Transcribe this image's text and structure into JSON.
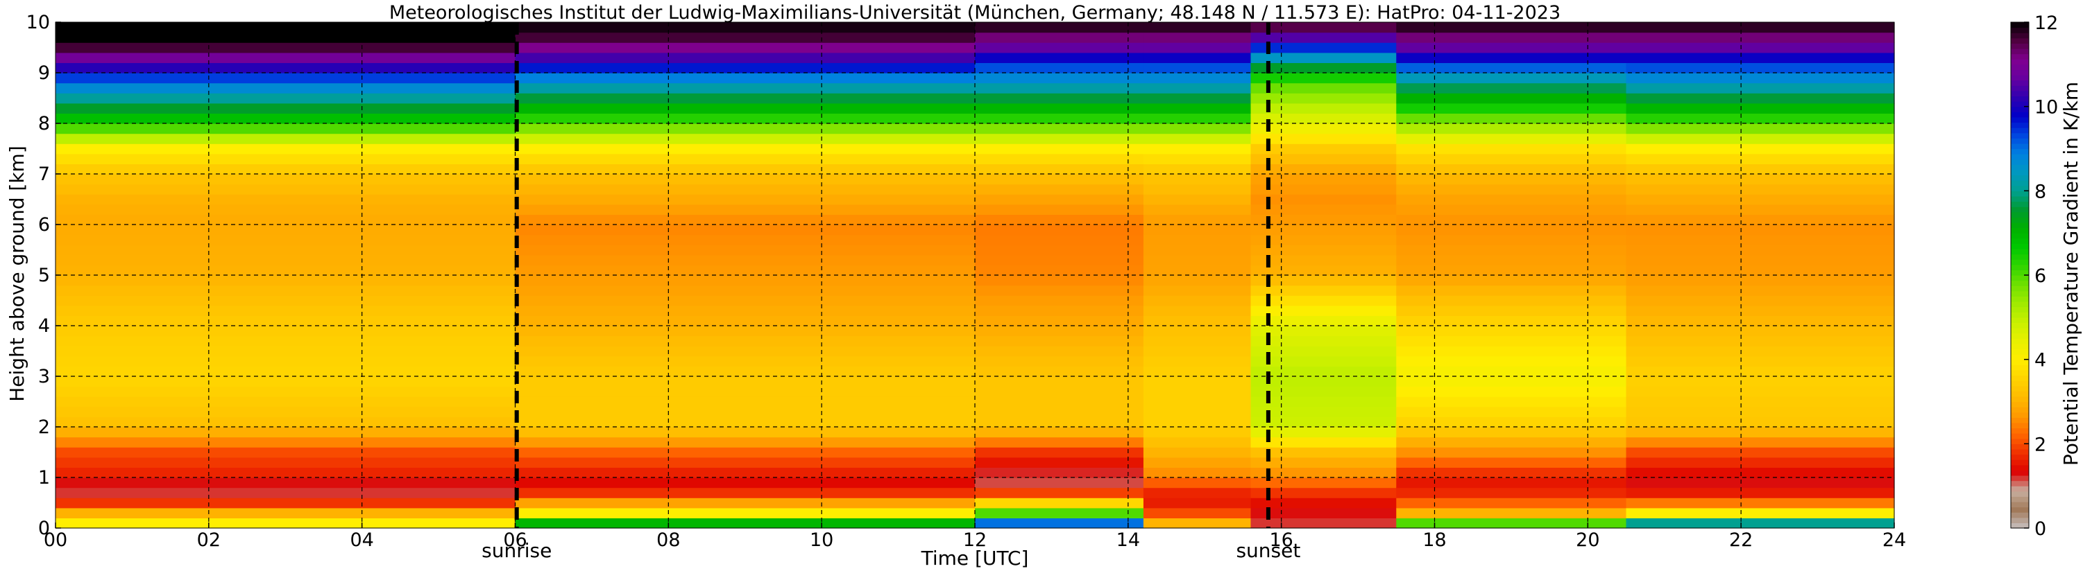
{
  "chart_data": {
    "type": "heatmap",
    "title": "Meteorologisches Institut der Ludwig-Maximilians-Universität (München, Germany; 48.148 N / 11.573 E):    HatPro: 04-11-2023",
    "xlabel": "Time [UTC]",
    "ylabel": "Height above ground [km]",
    "xlim": [
      0,
      24
    ],
    "ylim": [
      0,
      10
    ],
    "xticks": [
      0,
      2,
      4,
      6,
      8,
      10,
      12,
      14,
      16,
      18,
      20,
      22,
      24
    ],
    "xtick_labels": [
      "00",
      "02",
      "04",
      "06",
      "08",
      "10",
      "12",
      "14",
      "16",
      "18",
      "20",
      "22",
      "24"
    ],
    "yticks": [
      0,
      1,
      2,
      3,
      4,
      5,
      6,
      7,
      8,
      9,
      10
    ],
    "ytick_labels": [
      "0",
      "1",
      "2",
      "3",
      "4",
      "5",
      "6",
      "7",
      "8",
      "9",
      "10"
    ],
    "grid": true,
    "events": [
      {
        "label": "sunrise",
        "x": 6.02
      },
      {
        "label": "sunset",
        "x": 15.83
      }
    ],
    "colorbar": {
      "label": "Potential Temperature Gradient in K/km",
      "range": [
        0,
        12
      ],
      "ticks": [
        0,
        2,
        4,
        6,
        8,
        10,
        12
      ],
      "tick_labels": [
        "0",
        "2",
        "4",
        "6",
        "8",
        "10",
        "12"
      ],
      "colors": [
        "#c8c0c0",
        "#a07858",
        "#c8b0a0",
        "#dd0000",
        "#f03000",
        "#ff6600",
        "#ff9900",
        "#ffbb00",
        "#ffd400",
        "#ffee00",
        "#e8f000",
        "#c8f000",
        "#a0ea00",
        "#70e000",
        "#30d400",
        "#00c800",
        "#00b000",
        "#009a30",
        "#00a090",
        "#0098c0",
        "#0080e0",
        "#0044e0",
        "#0000c8",
        "#3000b0",
        "#6600a0",
        "#800090",
        "#500040",
        "#000000"
      ]
    },
    "profile_levels_km": [
      0,
      0.1,
      0.3,
      0.55,
      0.8,
      1.0,
      1.5,
      2.0,
      3.0,
      4.0,
      5.0,
      6.0,
      6.5,
      7.0,
      7.5,
      8.0,
      8.3,
      8.8,
      9.2,
      9.6,
      10.0
    ],
    "time_segments": [
      {
        "t": [
          0,
          6
        ],
        "gradient": [
          1,
          4,
          3,
          1.5,
          1,
          1.6,
          2,
          3.2,
          3.6,
          3.4,
          3.0,
          2.9,
          3.0,
          3.3,
          4.0,
          6.5,
          7.5,
          9.0,
          10.5,
          12,
          12
        ]
      },
      {
        "t": [
          6,
          12
        ],
        "gradient": [
          1,
          7,
          4,
          2.5,
          1.3,
          1.5,
          2.2,
          3.4,
          3.4,
          3.0,
          2.7,
          2.5,
          2.9,
          3.2,
          4.0,
          6.0,
          7.0,
          8.5,
          10.0,
          11.5,
          12
        ]
      },
      {
        "t": [
          12,
          14.2
        ],
        "gradient": [
          12,
          9,
          6,
          3,
          1.2,
          1.1,
          1.8,
          3.3,
          3.3,
          2.9,
          2.5,
          2.4,
          2.8,
          3.2,
          4.0,
          6.0,
          7.0,
          8.5,
          9.5,
          11.0,
          12
        ]
      },
      {
        "t": [
          14.2,
          15.6
        ],
        "gradient": [
          5,
          3,
          2,
          1.5,
          1.8,
          2.5,
          3.0,
          3.5,
          3.5,
          3.2,
          2.8,
          2.7,
          3.0,
          3.3,
          4.0,
          6.0,
          7.0,
          8.5,
          9.5,
          11.0,
          12
        ]
      },
      {
        "t": [
          15.6,
          17.5
        ],
        "gradient": [
          1.5,
          1.2,
          1.3,
          1.5,
          2.0,
          2.5,
          3.2,
          4.8,
          5.0,
          4.5,
          3.0,
          2.7,
          2.6,
          2.8,
          3.4,
          4.5,
          5.0,
          6.0,
          8.0,
          10.0,
          12
        ]
      },
      {
        "t": [
          17.5,
          20.5
        ],
        "gradient": [
          8,
          6,
          3,
          2,
          1.5,
          1.6,
          2.6,
          3.5,
          4.2,
          3.6,
          2.8,
          2.6,
          2.8,
          3.1,
          3.8,
          5.5,
          6.5,
          8.0,
          9.5,
          11.0,
          12
        ]
      },
      {
        "t": [
          20.5,
          24
        ],
        "gradient": [
          11,
          8,
          4,
          2,
          1.3,
          1.3,
          2.0,
          3.3,
          3.5,
          3.1,
          2.7,
          2.6,
          2.9,
          3.2,
          4.0,
          6.0,
          7.0,
          8.5,
          9.5,
          11.0,
          12
        ]
      }
    ]
  }
}
